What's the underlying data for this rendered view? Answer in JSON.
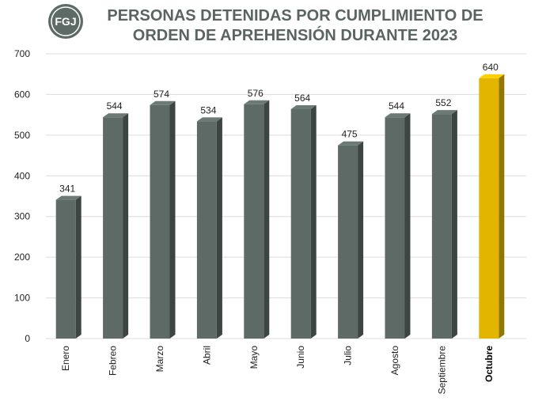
{
  "chart_data": {
    "type": "bar",
    "logo": "FGJ",
    "title": [
      "PERSONAS DETENIDAS POR CUMPLIMIENTO DE",
      "ORDEN DE APREHENSIÓN DURANTE 2023"
    ],
    "categories": [
      "Enero",
      "Febreo",
      "Marzo",
      "Abril",
      "Mayo",
      "Junio",
      "Julio",
      "Agosto",
      "Septiembre",
      "Octubre"
    ],
    "values": [
      341,
      544,
      574,
      534,
      576,
      564,
      475,
      544,
      552,
      640
    ],
    "colors": [
      "#5e6a65",
      "#5e6a65",
      "#5e6a65",
      "#5e6a65",
      "#5e6a65",
      "#5e6a65",
      "#5e6a65",
      "#5e6a65",
      "#5e6a65",
      "#e2b500"
    ],
    "ylim": [
      0,
      700
    ],
    "yticks": [
      0,
      100,
      200,
      300,
      400,
      500,
      600,
      700
    ],
    "grid": true
  }
}
